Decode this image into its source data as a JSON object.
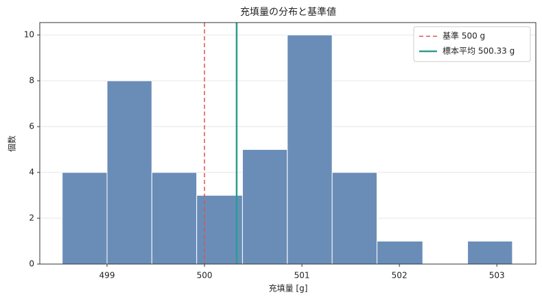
{
  "chart_data": {
    "type": "histogram",
    "title": "充填量の分布と基準値",
    "xlabel": "充填量 [g]",
    "ylabel": "個数",
    "bins": [
      498.54,
      499.0,
      499.46,
      499.92,
      500.39,
      500.85,
      501.31,
      501.77,
      502.24,
      502.7,
      503.16
    ],
    "values": [
      4,
      8,
      4,
      3,
      5,
      10,
      4,
      1,
      0,
      1
    ],
    "color": "#6a8db8",
    "xlim": [
      498.31,
      503.4
    ],
    "xticks": [
      499,
      500,
      501,
      502,
      503
    ],
    "ylim": [
      0,
      10.54
    ],
    "yticks": [
      0,
      2,
      4,
      6,
      8,
      10
    ],
    "grid": true,
    "legend": "upper right",
    "lines": [
      {
        "name": "基準 500 g",
        "value": 500,
        "color": "#e05050",
        "style": "dashed"
      },
      {
        "name": "標本平均 500.33 g",
        "value": 500.33,
        "color": "#2a9d8f",
        "style": "solid"
      }
    ]
  }
}
